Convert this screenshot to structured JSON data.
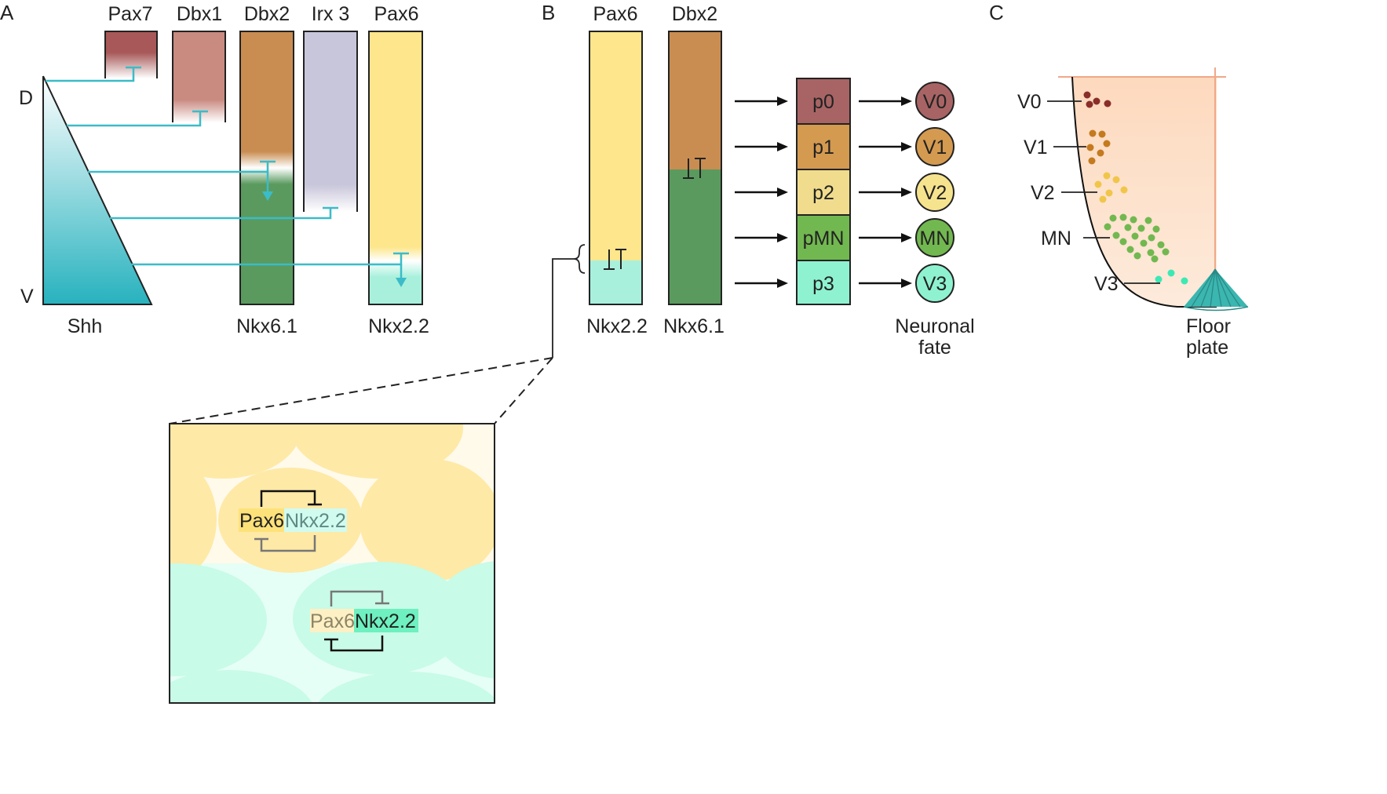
{
  "panels": {
    "a": "A",
    "b": "B",
    "c": "C"
  },
  "panel_a": {
    "bars": [
      "Pax7",
      "Dbx1",
      "Dbx2",
      "Irx 3",
      "Pax6"
    ],
    "dorsal": "D",
    "ventral": "V",
    "shh": "Shh",
    "bottom_labels": [
      "Nkx6.1",
      "Nkx2.2"
    ]
  },
  "panel_b": {
    "top_labels": [
      "Pax6",
      "Dbx2"
    ],
    "bottom_labels": [
      "Nkx2.2",
      "Nkx6.1"
    ],
    "progenitors": [
      "p0",
      "p1",
      "p2",
      "pMN",
      "p3"
    ],
    "neurons": [
      "V0",
      "V1",
      "V2",
      "MN",
      "V3"
    ],
    "fate_line1": "Neuronal",
    "fate_line2": "fate"
  },
  "inset": {
    "top_gene_a": "Pax6",
    "top_gene_b": "Nkx2.2",
    "bottom_gene_a": "Pax6",
    "bottom_gene_b": "Nkx2.2"
  },
  "panel_c": {
    "labels": [
      "V0",
      "V1",
      "V2",
      "MN",
      "V3"
    ],
    "floor_line1": "Floor",
    "floor_line2": "plate"
  },
  "colors": {
    "p0": "#a86464",
    "p1": "#d49a50",
    "p2": "#f0dc8c",
    "pMN": "#72b850",
    "p3": "#8ef2d0",
    "pax7": "#a85858",
    "dbx1": "#c98a80",
    "dbx2": "#c98d52",
    "irx3": "#c8c6da",
    "pax6": "#fde68c",
    "nkx61": "#5a9a5e",
    "nkx22": "#a8f0dc",
    "shh": "#2ab3c0",
    "inhibit": "#3bbcc8"
  }
}
